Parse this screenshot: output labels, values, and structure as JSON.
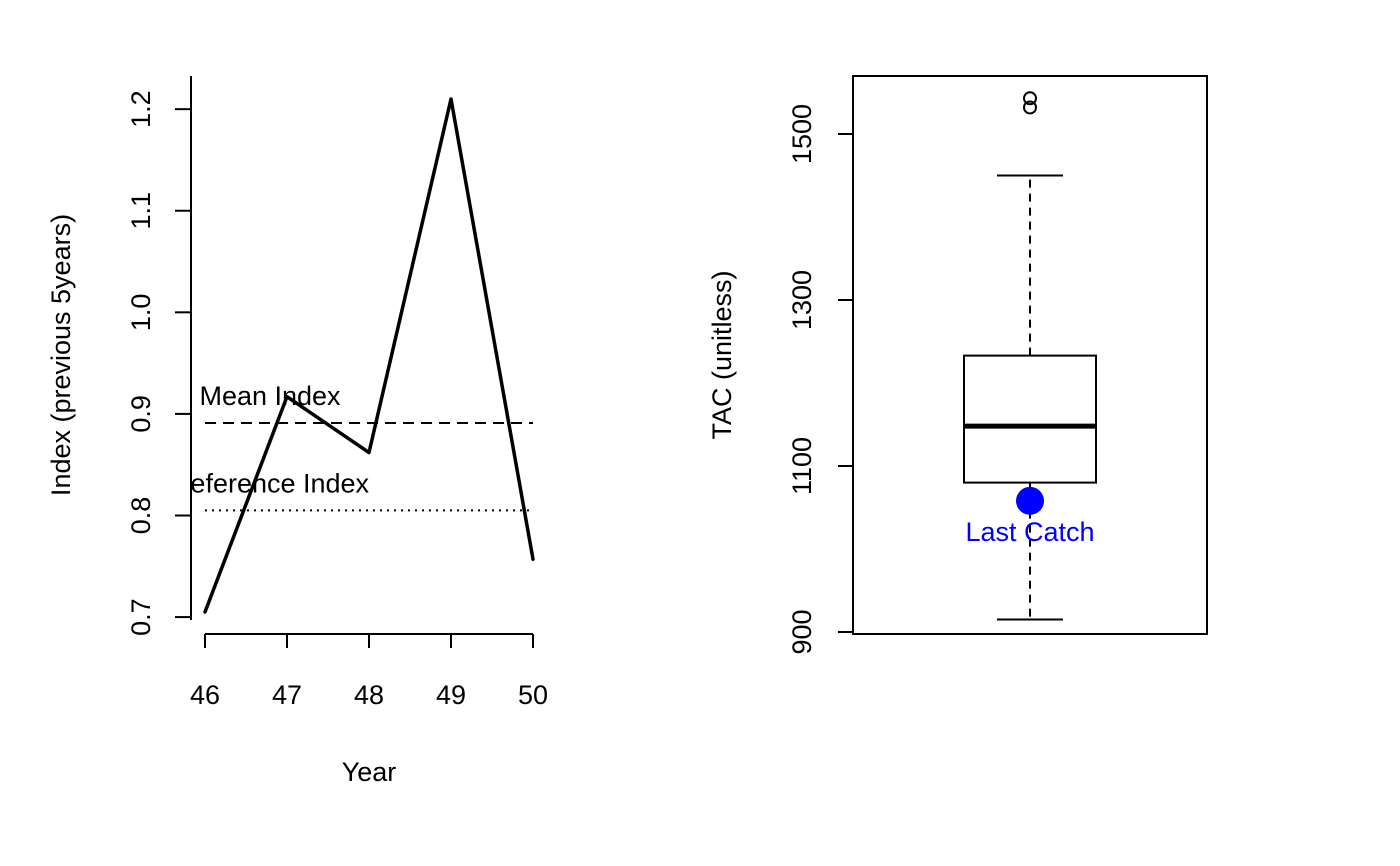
{
  "chart_data": [
    {
      "type": "line",
      "xlabel": "Year",
      "ylabel": "Index (previous 5years)",
      "x": [
        46,
        47,
        48,
        49,
        50
      ],
      "x_ticks": [
        "46",
        "47",
        "48",
        "49",
        "50"
      ],
      "y_ticks": [
        "0.7",
        "0.8",
        "0.9",
        "1.0",
        "1.1",
        "1.2"
      ],
      "xlim": [
        45.85,
        50.15
      ],
      "ylim": [
        0.685,
        1.23
      ],
      "series": [
        {
          "values": [
            0.705,
            0.917,
            0.862,
            1.21,
            0.757
          ]
        }
      ],
      "reference_lines": [
        {
          "label": "Mean Index",
          "value": 0.891,
          "style": "dashed"
        },
        {
          "label": "Reference Index",
          "value": 0.805,
          "style": "dotted"
        }
      ],
      "grid": false
    },
    {
      "type": "box",
      "ylabel": "TAC (unitless)",
      "y_ticks": [
        "900",
        "1100",
        "1300",
        "1500"
      ],
      "ylim": [
        895,
        1570
      ],
      "box": {
        "whisker_low": 915,
        "q1": 1080,
        "median": 1148,
        "q3": 1233,
        "whisker_high": 1450,
        "outliers": [
          1532,
          1543
        ]
      },
      "last_catch": {
        "label": "Last Catch",
        "value": 1058,
        "color": "#0000ff"
      },
      "grid": false
    }
  ]
}
